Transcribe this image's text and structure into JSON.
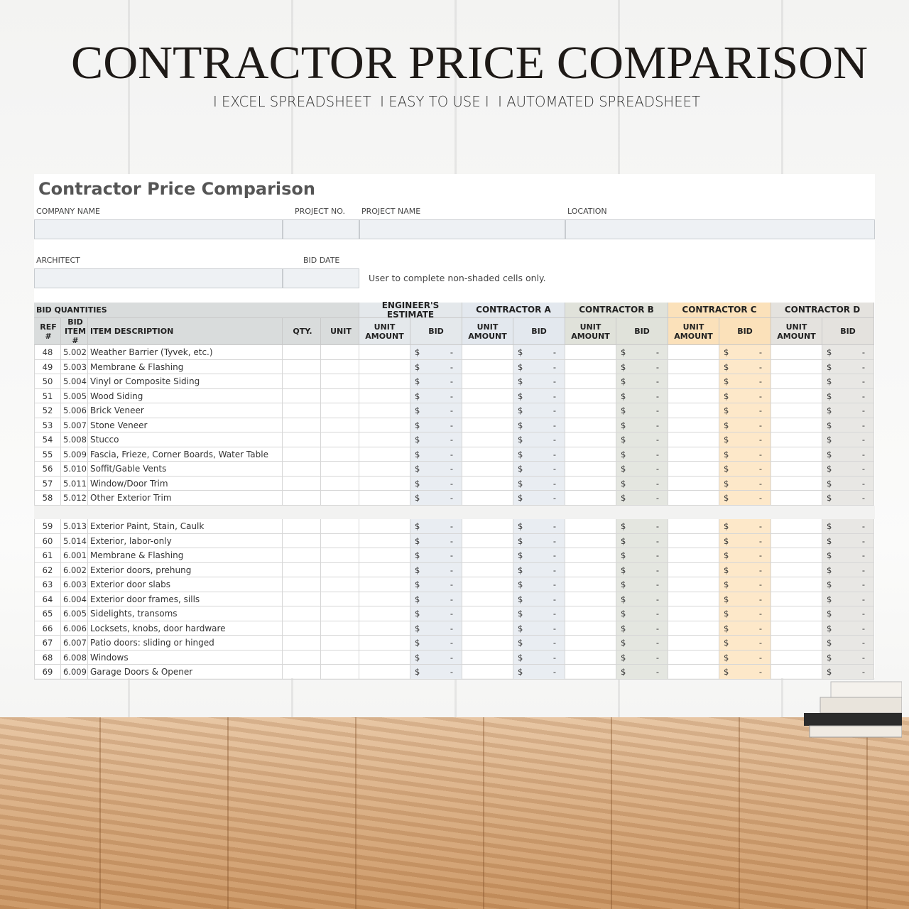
{
  "header": {
    "title": "CONTRACTOR PRICE COMPARISON",
    "subtitle": "I EXCEL SPREADSHEET  I EASY TO USE I  I AUTOMATED SPREADSHEET"
  },
  "sheet": {
    "title": "Contractor Price Comparison",
    "fields": [
      {
        "label": "COMPANY NAME"
      },
      {
        "label": "PROJECT NO."
      },
      {
        "label": "PROJECT NAME"
      },
      {
        "label": "LOCATION"
      },
      {
        "label": "ARCHITECT"
      },
      {
        "label": "BID DATE"
      }
    ],
    "note": "User to complete non-shaded cells only."
  },
  "table": {
    "section": "BID QUANTITIES",
    "columns": [
      "REF #",
      "BID ITEM #",
      "ITEM DESCRIPTION",
      "QTY.",
      "UNIT"
    ],
    "groups": [
      "ENGINEER'S ESTIMATE",
      "CONTRACTOR A",
      "CONTRACTOR B",
      "CONTRACTOR C",
      "CONTRACTOR D"
    ],
    "sub_columns": [
      "UNIT AMOUNT",
      "BID"
    ],
    "currency": "$",
    "blank": "-",
    "blocks": [
      [
        [
          48,
          "5.002",
          "Weather Barrier (Tyvek, etc.)"
        ],
        [
          49,
          "5.003",
          "Membrane & Flashing"
        ],
        [
          50,
          "5.004",
          "Vinyl or Composite Siding"
        ],
        [
          51,
          "5.005",
          "Wood Siding"
        ],
        [
          52,
          "5.006",
          "Brick Veneer"
        ],
        [
          53,
          "5.007",
          "Stone Veneer"
        ],
        [
          54,
          "5.008",
          "Stucco"
        ],
        [
          55,
          "5.009",
          "Fascia, Frieze, Corner Boards, Water Table"
        ],
        [
          56,
          "5.010",
          "Soffit/Gable Vents"
        ],
        [
          57,
          "5.011",
          "Window/Door Trim"
        ],
        [
          58,
          "5.012",
          "Other Exterior Trim"
        ]
      ],
      [
        [
          59,
          "5.013",
          "Exterior Paint, Stain, Caulk"
        ],
        [
          60,
          "5.014",
          "Exterior, labor-only"
        ],
        [
          61,
          "6.001",
          "Membrane & Flashing"
        ],
        [
          62,
          "6.002",
          "Exterior doors, prehung"
        ],
        [
          63,
          "6.003",
          "Exterior door slabs"
        ],
        [
          64,
          "6.004",
          "Exterior door frames, sills"
        ],
        [
          65,
          "6.005",
          "Sidelights, transoms"
        ],
        [
          66,
          "6.006",
          "Locksets, knobs, door hardware"
        ],
        [
          67,
          "6.007",
          "Patio doors: sliding or hinged"
        ],
        [
          68,
          "6.008",
          "Windows"
        ],
        [
          69,
          "6.009",
          "Garage Doors & Opener"
        ]
      ]
    ]
  }
}
